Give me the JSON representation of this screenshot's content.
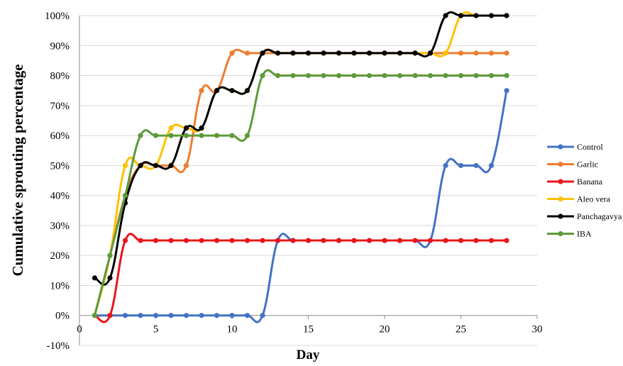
{
  "chart_data": {
    "type": "line",
    "title": "",
    "xlabel": "Day",
    "ylabel": "Cumulative sprouting percentage",
    "xlim": [
      0,
      30
    ],
    "ylim": [
      -10,
      100
    ],
    "x_ticks": [
      0,
      5,
      10,
      15,
      20,
      25,
      30
    ],
    "x_tick_labels": [
      "0",
      "5",
      "10",
      "15",
      "20",
      "25",
      "30"
    ],
    "y_ticks": [
      -10,
      0,
      10,
      20,
      30,
      40,
      50,
      60,
      70,
      80,
      90,
      100
    ],
    "y_tick_labels": [
      "-10%",
      "0%",
      "10%",
      "20%",
      "30%",
      "40%",
      "50%",
      "60%",
      "70%",
      "80%",
      "90%",
      "100%"
    ],
    "grid": true,
    "legend_position": "right",
    "x": [
      1,
      2,
      3,
      4,
      5,
      6,
      7,
      8,
      9,
      10,
      11,
      12,
      13,
      14,
      15,
      16,
      17,
      18,
      19,
      20,
      21,
      22,
      23,
      24,
      25,
      26,
      27,
      28
    ],
    "series": [
      {
        "name": "Control",
        "color": "#4472C4",
        "values": [
          0,
          0,
          0,
          0,
          0,
          0,
          0,
          0,
          0,
          0,
          0,
          0,
          25,
          25,
          25,
          25,
          25,
          25,
          25,
          25,
          25,
          25,
          25,
          50,
          50,
          50,
          50,
          75
        ]
      },
      {
        "name": "Garlic",
        "color": "#ED7D31",
        "values": [
          0,
          20,
          40,
          50,
          50,
          50,
          50,
          75,
          75,
          87.5,
          87.5,
          87.5,
          87.5,
          87.5,
          87.5,
          87.5,
          87.5,
          87.5,
          87.5,
          87.5,
          87.5,
          87.5,
          87.5,
          87.5,
          87.5,
          87.5,
          87.5,
          87.5
        ]
      },
      {
        "name": "Banana",
        "color": "#E8161B",
        "values": [
          0,
          0,
          25,
          25,
          25,
          25,
          25,
          25,
          25,
          25,
          25,
          25,
          25,
          25,
          25,
          25,
          25,
          25,
          25,
          25,
          25,
          25,
          25,
          25,
          25,
          25,
          25,
          25
        ]
      },
      {
        "name": "Aleo vera",
        "color": "#FFC000",
        "values": [
          0,
          20,
          50,
          50,
          50,
          62.5,
          62.5,
          62.5,
          75,
          75,
          75,
          87.5,
          87.5,
          87.5,
          87.5,
          87.5,
          87.5,
          87.5,
          87.5,
          87.5,
          87.5,
          87.5,
          87.5,
          87.5,
          100,
          100,
          100,
          100
        ]
      },
      {
        "name": "Panchagavya",
        "color": "#000000",
        "values": [
          12.5,
          12.5,
          37.5,
          50,
          50,
          50,
          62.5,
          62.5,
          75,
          75,
          75,
          87.5,
          87.5,
          87.5,
          87.5,
          87.5,
          87.5,
          87.5,
          87.5,
          87.5,
          87.5,
          87.5,
          87.5,
          100,
          100,
          100,
          100,
          100
        ]
      },
      {
        "name": "IBA",
        "color": "#5E9A3A",
        "values": [
          0,
          20,
          40,
          60,
          60,
          60,
          60,
          60,
          60,
          60,
          60,
          80,
          80,
          80,
          80,
          80,
          80,
          80,
          80,
          80,
          80,
          80,
          80,
          80,
          80,
          80,
          80,
          80
        ]
      }
    ]
  }
}
